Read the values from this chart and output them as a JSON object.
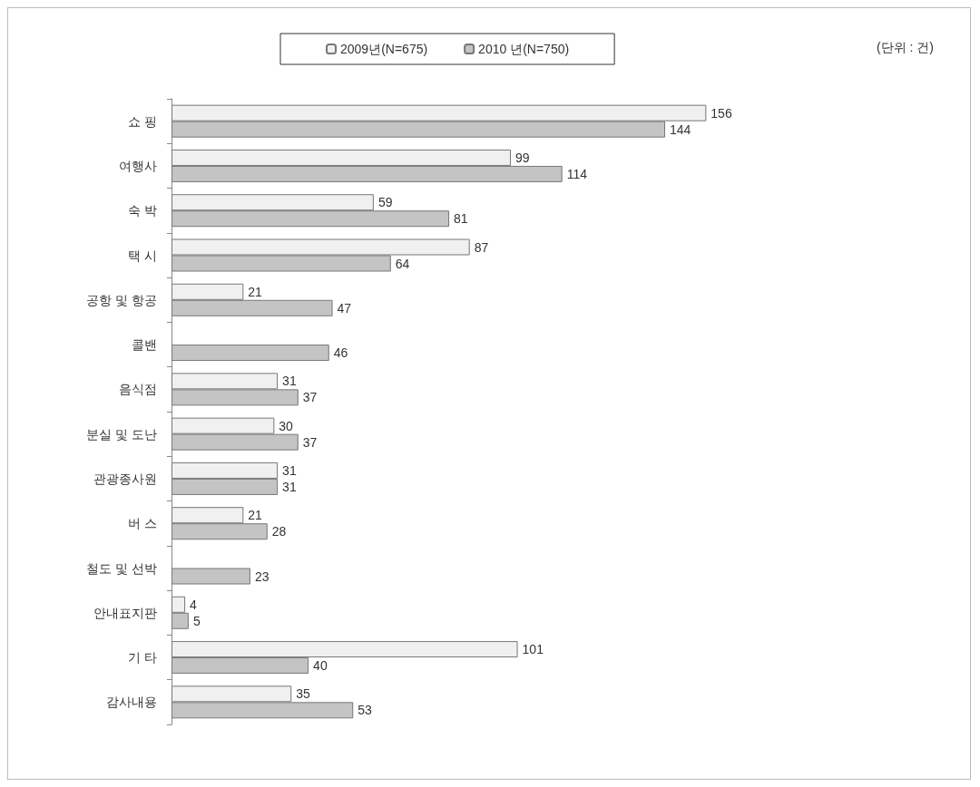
{
  "chart_data": {
    "type": "bar",
    "orientation": "horizontal",
    "categories": [
      "쇼 핑",
      "여행사",
      "숙 박",
      "택 시",
      "공항 및 항공",
      "콜밴",
      "음식점",
      "분실 및 도난",
      "관광종사원",
      "버 스",
      "철도 및 선박",
      "안내표지판",
      "기 타",
      "감사내용"
    ],
    "series": [
      {
        "name": "2009년(N=675)",
        "color": "#f0f0f0",
        "values": [
          156,
          99,
          59,
          87,
          21,
          null,
          31,
          30,
          31,
          21,
          null,
          4,
          101,
          35
        ]
      },
      {
        "name": "2010 년(N=750)",
        "color": "#c4c4c4",
        "values": [
          144,
          114,
          81,
          64,
          47,
          46,
          37,
          37,
          31,
          28,
          23,
          5,
          40,
          53
        ]
      }
    ],
    "data_labels": true,
    "legend": "top",
    "grid": false,
    "tick_labels": "y",
    "annotations": [
      "(단위 : 건)"
    ]
  }
}
